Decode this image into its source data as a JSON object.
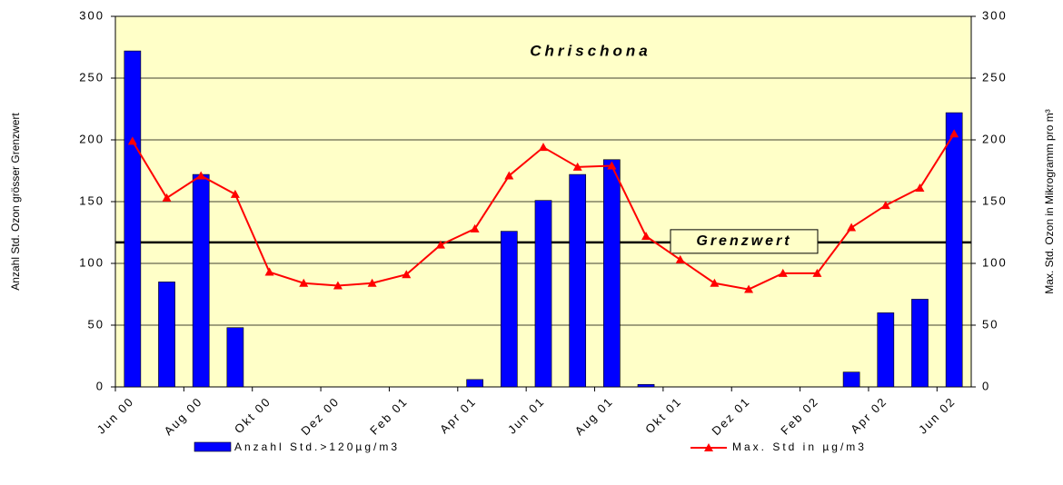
{
  "chart_data": {
    "type": "bar_line",
    "title": "Chrischona",
    "ylabel": "Anzahl Std. Ozon grösser Grenzwert",
    "y2label": "Max. Std. Ozon in Mikrogramm pro m³",
    "categories": [
      "Jun 00",
      null,
      "Aug 00",
      null,
      "Okt 00",
      null,
      "Dez 00",
      null,
      "Feb 01",
      null,
      "Apr 01",
      null,
      "Jun 01",
      null,
      "Aug 01",
      null,
      "Okt 01",
      null,
      "Dez 01",
      null,
      "Feb 02",
      null,
      "Apr 02",
      null,
      "Jun 02"
    ],
    "series": [
      {
        "name": "Anzahl Std.>120µg/m3",
        "type": "bar",
        "axis": "y",
        "color": "#0000ff",
        "values": [
          272,
          85,
          172,
          48,
          0,
          0,
          0,
          0,
          0,
          0,
          6,
          126,
          151,
          172,
          184,
          2,
          0,
          0,
          0,
          0,
          0,
          12,
          60,
          71,
          222
        ]
      },
      {
        "name": "Max. Std in µg/m3",
        "type": "line",
        "axis": "y2",
        "color": "#ff0000",
        "values": [
          199,
          153,
          171,
          156,
          93,
          84,
          82,
          84,
          91,
          115,
          128,
          171,
          194,
          178,
          179,
          122,
          103,
          84,
          79,
          92,
          92,
          129,
          147,
          161,
          205
        ]
      }
    ],
    "annotation": {
      "text": "Grenzwert",
      "value": 117
    },
    "ylim": [
      0,
      300
    ],
    "yticks": [
      0,
      50,
      100,
      150,
      200,
      250,
      300
    ],
    "y2lim": [
      0,
      300
    ],
    "y2ticks": [
      0,
      50,
      100,
      150,
      200,
      250,
      300
    ],
    "grid": true,
    "background": "#ffffc8",
    "legend": "bottom"
  }
}
